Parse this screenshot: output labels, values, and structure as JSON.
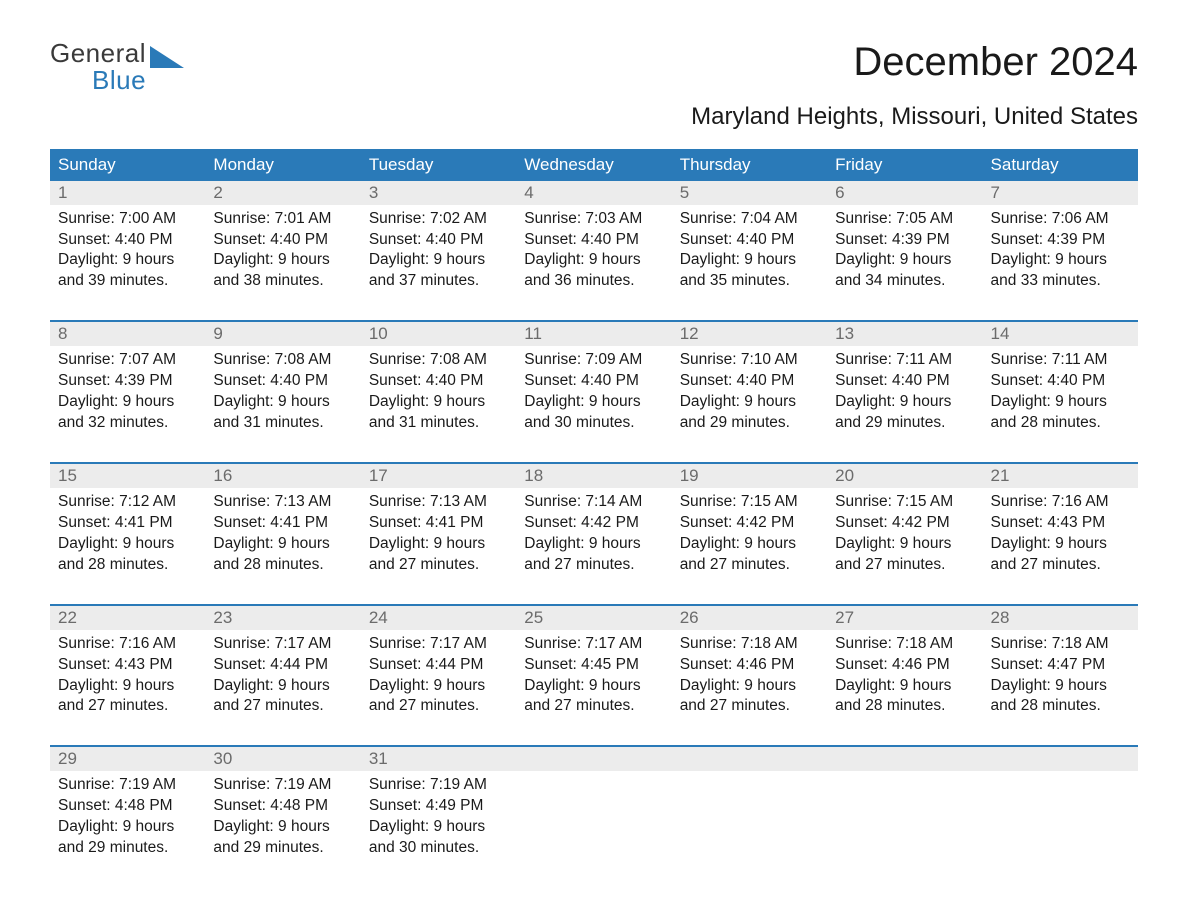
{
  "logo": {
    "general": "General",
    "blue": "Blue",
    "tri_color": "#2a7ab8"
  },
  "title": "December 2024",
  "subtitle": "Maryland Heights, Missouri, United States",
  "colors": {
    "header_bg": "#2a7ab8",
    "header_fg": "#ffffff",
    "daynum_bg": "#ececec",
    "daynum_fg": "#6b6b6b",
    "text": "#1a1a1a",
    "rule": "#2a7ab8",
    "page_bg": "#ffffff"
  },
  "day_headers": [
    "Sunday",
    "Monday",
    "Tuesday",
    "Wednesday",
    "Thursday",
    "Friday",
    "Saturday"
  ],
  "weeks": [
    [
      {
        "n": "1",
        "sunrise": "Sunrise: 7:00 AM",
        "sunset": "Sunset: 4:40 PM",
        "d1": "Daylight: 9 hours",
        "d2": "and 39 minutes."
      },
      {
        "n": "2",
        "sunrise": "Sunrise: 7:01 AM",
        "sunset": "Sunset: 4:40 PM",
        "d1": "Daylight: 9 hours",
        "d2": "and 38 minutes."
      },
      {
        "n": "3",
        "sunrise": "Sunrise: 7:02 AM",
        "sunset": "Sunset: 4:40 PM",
        "d1": "Daylight: 9 hours",
        "d2": "and 37 minutes."
      },
      {
        "n": "4",
        "sunrise": "Sunrise: 7:03 AM",
        "sunset": "Sunset: 4:40 PM",
        "d1": "Daylight: 9 hours",
        "d2": "and 36 minutes."
      },
      {
        "n": "5",
        "sunrise": "Sunrise: 7:04 AM",
        "sunset": "Sunset: 4:40 PM",
        "d1": "Daylight: 9 hours",
        "d2": "and 35 minutes."
      },
      {
        "n": "6",
        "sunrise": "Sunrise: 7:05 AM",
        "sunset": "Sunset: 4:39 PM",
        "d1": "Daylight: 9 hours",
        "d2": "and 34 minutes."
      },
      {
        "n": "7",
        "sunrise": "Sunrise: 7:06 AM",
        "sunset": "Sunset: 4:39 PM",
        "d1": "Daylight: 9 hours",
        "d2": "and 33 minutes."
      }
    ],
    [
      {
        "n": "8",
        "sunrise": "Sunrise: 7:07 AM",
        "sunset": "Sunset: 4:39 PM",
        "d1": "Daylight: 9 hours",
        "d2": "and 32 minutes."
      },
      {
        "n": "9",
        "sunrise": "Sunrise: 7:08 AM",
        "sunset": "Sunset: 4:40 PM",
        "d1": "Daylight: 9 hours",
        "d2": "and 31 minutes."
      },
      {
        "n": "10",
        "sunrise": "Sunrise: 7:08 AM",
        "sunset": "Sunset: 4:40 PM",
        "d1": "Daylight: 9 hours",
        "d2": "and 31 minutes."
      },
      {
        "n": "11",
        "sunrise": "Sunrise: 7:09 AM",
        "sunset": "Sunset: 4:40 PM",
        "d1": "Daylight: 9 hours",
        "d2": "and 30 minutes."
      },
      {
        "n": "12",
        "sunrise": "Sunrise: 7:10 AM",
        "sunset": "Sunset: 4:40 PM",
        "d1": "Daylight: 9 hours",
        "d2": "and 29 minutes."
      },
      {
        "n": "13",
        "sunrise": "Sunrise: 7:11 AM",
        "sunset": "Sunset: 4:40 PM",
        "d1": "Daylight: 9 hours",
        "d2": "and 29 minutes."
      },
      {
        "n": "14",
        "sunrise": "Sunrise: 7:11 AM",
        "sunset": "Sunset: 4:40 PM",
        "d1": "Daylight: 9 hours",
        "d2": "and 28 minutes."
      }
    ],
    [
      {
        "n": "15",
        "sunrise": "Sunrise: 7:12 AM",
        "sunset": "Sunset: 4:41 PM",
        "d1": "Daylight: 9 hours",
        "d2": "and 28 minutes."
      },
      {
        "n": "16",
        "sunrise": "Sunrise: 7:13 AM",
        "sunset": "Sunset: 4:41 PM",
        "d1": "Daylight: 9 hours",
        "d2": "and 28 minutes."
      },
      {
        "n": "17",
        "sunrise": "Sunrise: 7:13 AM",
        "sunset": "Sunset: 4:41 PM",
        "d1": "Daylight: 9 hours",
        "d2": "and 27 minutes."
      },
      {
        "n": "18",
        "sunrise": "Sunrise: 7:14 AM",
        "sunset": "Sunset: 4:42 PM",
        "d1": "Daylight: 9 hours",
        "d2": "and 27 minutes."
      },
      {
        "n": "19",
        "sunrise": "Sunrise: 7:15 AM",
        "sunset": "Sunset: 4:42 PM",
        "d1": "Daylight: 9 hours",
        "d2": "and 27 minutes."
      },
      {
        "n": "20",
        "sunrise": "Sunrise: 7:15 AM",
        "sunset": "Sunset: 4:42 PM",
        "d1": "Daylight: 9 hours",
        "d2": "and 27 minutes."
      },
      {
        "n": "21",
        "sunrise": "Sunrise: 7:16 AM",
        "sunset": "Sunset: 4:43 PM",
        "d1": "Daylight: 9 hours",
        "d2": "and 27 minutes."
      }
    ],
    [
      {
        "n": "22",
        "sunrise": "Sunrise: 7:16 AM",
        "sunset": "Sunset: 4:43 PM",
        "d1": "Daylight: 9 hours",
        "d2": "and 27 minutes."
      },
      {
        "n": "23",
        "sunrise": "Sunrise: 7:17 AM",
        "sunset": "Sunset: 4:44 PM",
        "d1": "Daylight: 9 hours",
        "d2": "and 27 minutes."
      },
      {
        "n": "24",
        "sunrise": "Sunrise: 7:17 AM",
        "sunset": "Sunset: 4:44 PM",
        "d1": "Daylight: 9 hours",
        "d2": "and 27 minutes."
      },
      {
        "n": "25",
        "sunrise": "Sunrise: 7:17 AM",
        "sunset": "Sunset: 4:45 PM",
        "d1": "Daylight: 9 hours",
        "d2": "and 27 minutes."
      },
      {
        "n": "26",
        "sunrise": "Sunrise: 7:18 AM",
        "sunset": "Sunset: 4:46 PM",
        "d1": "Daylight: 9 hours",
        "d2": "and 27 minutes."
      },
      {
        "n": "27",
        "sunrise": "Sunrise: 7:18 AM",
        "sunset": "Sunset: 4:46 PM",
        "d1": "Daylight: 9 hours",
        "d2": "and 28 minutes."
      },
      {
        "n": "28",
        "sunrise": "Sunrise: 7:18 AM",
        "sunset": "Sunset: 4:47 PM",
        "d1": "Daylight: 9 hours",
        "d2": "and 28 minutes."
      }
    ],
    [
      {
        "n": "29",
        "sunrise": "Sunrise: 7:19 AM",
        "sunset": "Sunset: 4:48 PM",
        "d1": "Daylight: 9 hours",
        "d2": "and 29 minutes."
      },
      {
        "n": "30",
        "sunrise": "Sunrise: 7:19 AM",
        "sunset": "Sunset: 4:48 PM",
        "d1": "Daylight: 9 hours",
        "d2": "and 29 minutes."
      },
      {
        "n": "31",
        "sunrise": "Sunrise: 7:19 AM",
        "sunset": "Sunset: 4:49 PM",
        "d1": "Daylight: 9 hours",
        "d2": "and 30 minutes."
      },
      null,
      null,
      null,
      null
    ]
  ]
}
